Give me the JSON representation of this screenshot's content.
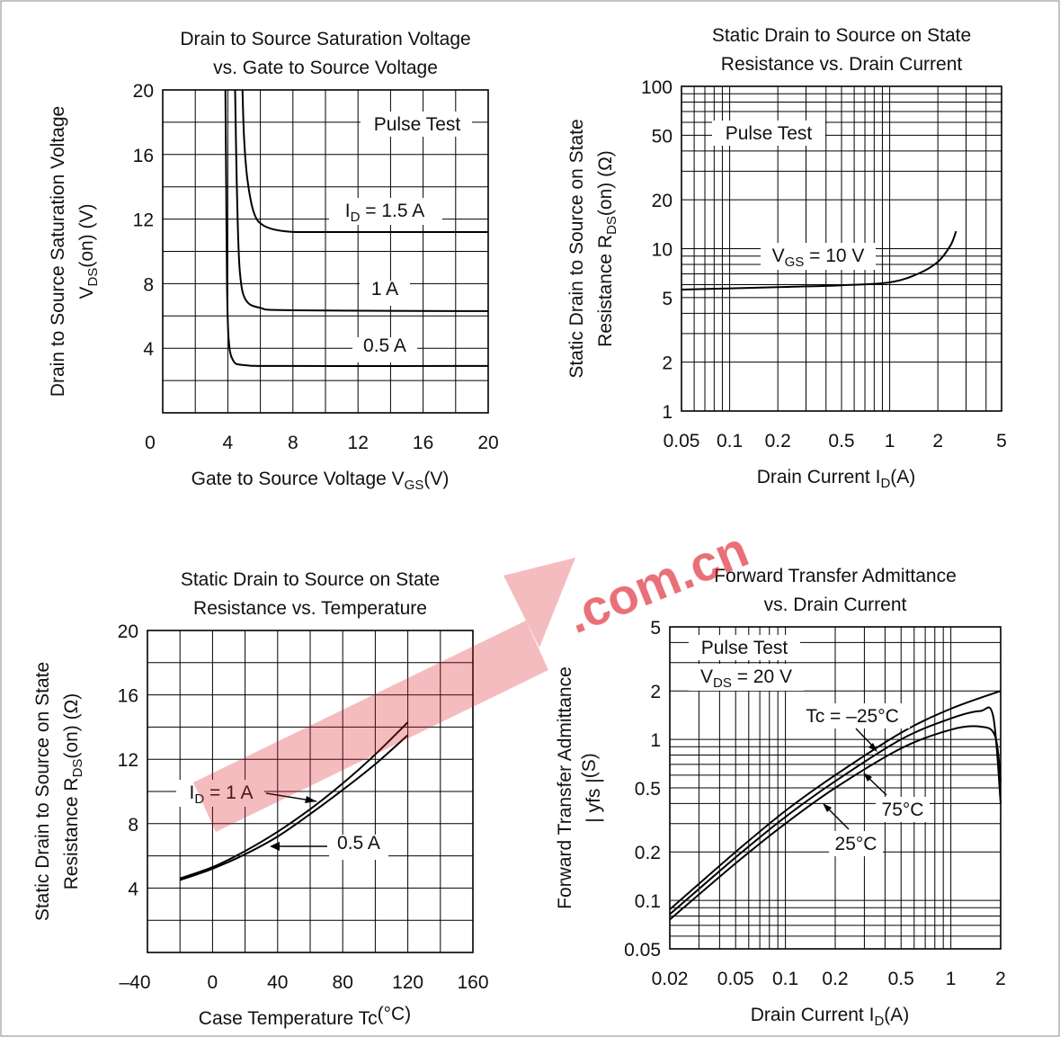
{
  "chart_data": [
    {
      "type": "line",
      "title_line1": "Drain to Source Saturation Voltage",
      "title_line2": "vs. Gate to Source Voltage",
      "xlabel_main": "Gate to Source Voltage V",
      "xlabel_sub": "GS",
      "xlabel_unit": "(V)",
      "ylabel_line1": "Drain to Source Saturation Voltage",
      "ylabel_main": "V",
      "ylabel_sub": "DS",
      "ylabel_unit": "(on)   (V)",
      "xlim": [
        0,
        20
      ],
      "ylim": [
        0,
        20
      ],
      "x_ticks": [
        "0",
        "4",
        "8",
        "12",
        "16",
        "20"
      ],
      "y_ticks": [
        "4",
        "8",
        "12",
        "16",
        "20"
      ],
      "annotation": "Pulse Test",
      "series": [
        {
          "label_main": "I",
          "label_sub": "D",
          "label_rest": " = 1.5 A",
          "points": [
            [
              4.9,
              20
            ],
            [
              5.0,
              17
            ],
            [
              5.2,
              14.5
            ],
            [
              5.6,
              12.4
            ],
            [
              6.2,
              11.6
            ],
            [
              7.5,
              11.25
            ],
            [
              10,
              11.2
            ],
            [
              20,
              11.2
            ]
          ]
        },
        {
          "label_main": "",
          "label_sub": "",
          "label_rest": "1 A",
          "points": [
            [
              4.45,
              20
            ],
            [
              4.5,
              17
            ],
            [
              4.6,
              12
            ],
            [
              4.75,
              8.6
            ],
            [
              5.1,
              7.0
            ],
            [
              6.0,
              6.5
            ],
            [
              8,
              6.35
            ],
            [
              20,
              6.3
            ]
          ]
        },
        {
          "label_main": "",
          "label_sub": "",
          "label_rest": "0.5 A",
          "points": [
            [
              3.85,
              20
            ],
            [
              3.9,
              14
            ],
            [
              3.95,
              8
            ],
            [
              4.05,
              4.6
            ],
            [
              4.3,
              3.3
            ],
            [
              5.0,
              2.95
            ],
            [
              8,
              2.9
            ],
            [
              20,
              2.9
            ]
          ]
        }
      ]
    },
    {
      "type": "line",
      "title_line1": "Static Drain to Source on State",
      "title_line2": "Resistance vs. Drain Current",
      "xlabel_main": "Drain Current I",
      "xlabel_sub": "D",
      "xlabel_unit": "(A)",
      "ylabel_line1": "Static Drain to Source on State",
      "ylabel_main": "Resistance R",
      "ylabel_sub": "DS",
      "ylabel_unit": "(on)  (Ω)",
      "x_scale": "log",
      "y_scale": "log",
      "xlim": [
        0.05,
        5
      ],
      "ylim": [
        1,
        100
      ],
      "x_ticks": [
        "0.05",
        "0.1",
        "0.2",
        "0.5",
        "1",
        "2",
        "5"
      ],
      "x_tick_values": [
        0.05,
        0.1,
        0.2,
        0.5,
        1,
        2,
        5
      ],
      "y_ticks": [
        "1",
        "2",
        "5",
        "10",
        "20",
        "50",
        "100"
      ],
      "y_tick_values": [
        1,
        2,
        5,
        10,
        20,
        50,
        100
      ],
      "annotation": "Pulse Test",
      "series": [
        {
          "label_main": "V",
          "label_sub": "GS",
          "label_rest": " = 10 V",
          "points": [
            [
              0.05,
              5.6
            ],
            [
              0.2,
              5.8
            ],
            [
              0.5,
              5.95
            ],
            [
              1.0,
              6.2
            ],
            [
              1.5,
              7.0
            ],
            [
              2.0,
              8.3
            ],
            [
              2.4,
              10.5
            ],
            [
              2.6,
              12.8
            ]
          ]
        }
      ]
    },
    {
      "type": "line",
      "title_line1": "Static Drain to Source on State",
      "title_line2": "Resistance vs. Temperature",
      "xlabel_main": "Case Temperature Tc",
      "xlabel_sub": "",
      "xlabel_unit": "(°C)",
      "ylabel_line1": "Static Drain to Source on State",
      "ylabel_main": "Resistance R",
      "ylabel_sub": "DS",
      "ylabel_unit": "(on)  (Ω)",
      "xlim": [
        -40,
        160
      ],
      "ylim": [
        0,
        20
      ],
      "x_ticks": [
        "–40",
        "0",
        "40",
        "80",
        "120",
        "160"
      ],
      "y_ticks": [
        "4",
        "8",
        "12",
        "16",
        "20"
      ],
      "annotation": "",
      "series": [
        {
          "label_main": "I",
          "label_sub": "D",
          "label_rest": " = 1 A",
          "points": [
            [
              -20,
              4.6
            ],
            [
              0,
              5.3
            ],
            [
              20,
              6.3
            ],
            [
              40,
              7.5
            ],
            [
              60,
              8.9
            ],
            [
              80,
              10.5
            ],
            [
              100,
              12.3
            ],
            [
              120,
              14.3
            ]
          ]
        },
        {
          "label_main": "",
          "label_sub": "",
          "label_rest": "0.5 A",
          "points": [
            [
              -20,
              4.5
            ],
            [
              0,
              5.2
            ],
            [
              20,
              6.1
            ],
            [
              40,
              7.2
            ],
            [
              60,
              8.6
            ],
            [
              80,
              10.1
            ],
            [
              100,
              11.7
            ],
            [
              120,
              13.5
            ]
          ]
        }
      ]
    },
    {
      "type": "line",
      "title_line1": "Forward Transfer Admittance",
      "title_line2": "vs. Drain Current",
      "xlabel_main": "Drain Current I",
      "xlabel_sub": "D",
      "xlabel_unit": "(A)",
      "ylabel_line1": "Forward Transfer Admittance",
      "ylabel_main": "| yfs |",
      "ylabel_sub": "",
      "ylabel_unit": "(S)",
      "x_scale": "log",
      "y_scale": "log",
      "xlim": [
        0.02,
        2
      ],
      "ylim": [
        0.05,
        5
      ],
      "x_ticks": [
        "0.02",
        "0.05",
        "0.1",
        "0.2",
        "0.5",
        "1",
        "2"
      ],
      "x_tick_values": [
        0.02,
        0.05,
        0.1,
        0.2,
        0.5,
        1,
        2
      ],
      "y_ticks": [
        "0.05",
        "0.1",
        "0.2",
        "0.5",
        "1",
        "2",
        "5"
      ],
      "y_tick_values": [
        0.05,
        0.1,
        0.2,
        0.5,
        1,
        2,
        5
      ],
      "annotation": "Pulse Test",
      "annotation2_main": "V",
      "annotation2_sub": "DS",
      "annotation2_rest": " = 20 V",
      "series": [
        {
          "label_main": "Tc = –25°C",
          "label_sub": "",
          "label_rest": "",
          "points": [
            [
              0.02,
              0.088
            ],
            [
              0.05,
              0.2
            ],
            [
              0.1,
              0.36
            ],
            [
              0.2,
              0.6
            ],
            [
              0.5,
              1.1
            ],
            [
              1.0,
              1.55
            ],
            [
              2.0,
              2.0
            ]
          ]
        },
        {
          "label_main": "75°C",
          "label_sub": "",
          "label_rest": "",
          "points": [
            [
              0.02,
              0.082
            ],
            [
              0.05,
              0.185
            ],
            [
              0.1,
              0.33
            ],
            [
              0.2,
              0.55
            ],
            [
              0.5,
              1.0
            ],
            [
              1.0,
              1.35
            ],
            [
              1.5,
              1.5
            ],
            [
              1.8,
              1.4
            ],
            [
              2.0,
              0.4
            ]
          ]
        },
        {
          "label_main": "25°C",
          "label_sub": "",
          "label_rest": "",
          "points": [
            [
              0.02,
              0.076
            ],
            [
              0.05,
              0.17
            ],
            [
              0.1,
              0.3
            ],
            [
              0.2,
              0.5
            ],
            [
              0.5,
              0.88
            ],
            [
              1.0,
              1.15
            ],
            [
              1.5,
              1.2
            ],
            [
              1.85,
              1.05
            ],
            [
              2.0,
              0.55
            ]
          ]
        }
      ]
    }
  ],
  "watermark": ".com.cn"
}
